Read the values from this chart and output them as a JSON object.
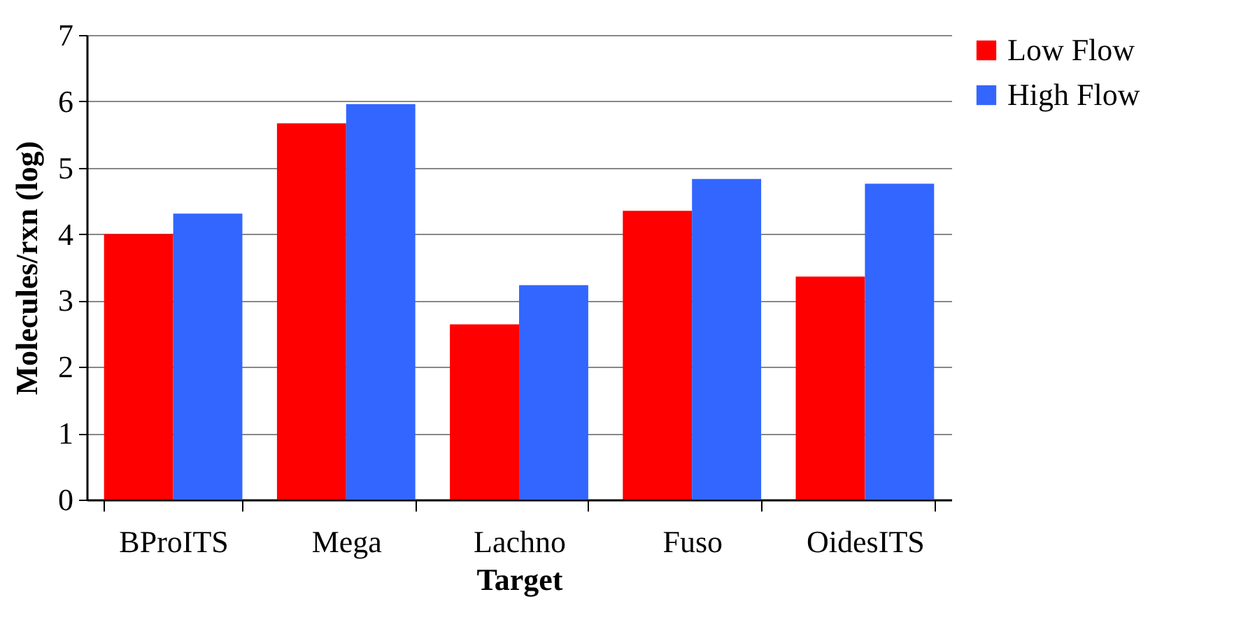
{
  "chart_data": {
    "type": "bar",
    "xlabel": "Target",
    "ylabel": "Molecules/rxn (log)",
    "categories": [
      "BProITS",
      "Mega",
      "Lachno",
      "Fuso",
      "OidesITS"
    ],
    "series": [
      {
        "name": "Low Flow",
        "color": "#ff0000",
        "values": [
          4.0,
          5.67,
          2.64,
          4.35,
          3.36
        ]
      },
      {
        "name": "High Flow",
        "color": "#3366ff",
        "values": [
          4.31,
          5.96,
          3.23,
          4.83,
          4.76
        ]
      }
    ],
    "ylim": [
      0,
      7
    ],
    "yticks": [
      0,
      1,
      2,
      3,
      4,
      5,
      6,
      7
    ],
    "grid": "y",
    "legend": "right"
  }
}
